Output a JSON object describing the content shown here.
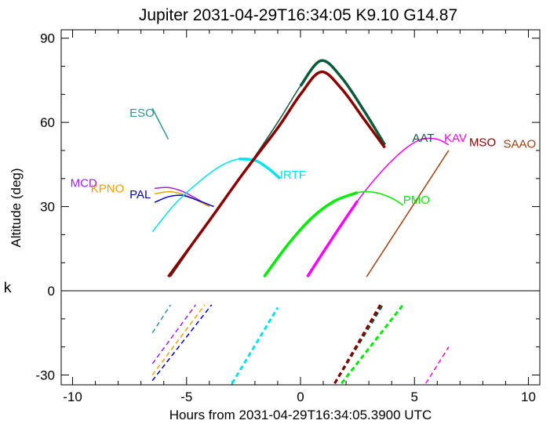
{
  "chart_data": {
    "type": "line",
    "title": "Jupiter 2031-04-29T16:34:05  K9.10  G14.87",
    "xlabel": "Hours from 2031-04-29T16:34:05.3900 UTC",
    "ylabel": "Altitude (deg)",
    "xlim": [
      -10.5,
      10.5
    ],
    "ylim": [
      -33.5,
      93
    ],
    "horizon_line": 0,
    "xticks": [
      -10,
      -5,
      0,
      5,
      10
    ],
    "xtick_labels": [
      "-10",
      "-5",
      "0",
      "5",
      "10"
    ],
    "yticks": [
      -30,
      0,
      30,
      60,
      90
    ],
    "ytick_labels": [
      "-30",
      "0",
      "30",
      "60",
      "90"
    ],
    "stray_text": "k",
    "series": [
      {
        "name": "ESO",
        "color": "#2a9a8e",
        "width": 1.5,
        "x": [
          -6.5,
          -5.8
        ],
        "y": [
          65,
          54
        ],
        "below": {
          "x": [
            -6.5,
            -5.7
          ],
          "y": [
            -15,
            -5
          ]
        }
      },
      {
        "name": "MCD",
        "color": "#a020f0",
        "width": 1.5,
        "x": [
          -6.4,
          -5.8,
          -5.2,
          -4.6,
          -4.0
        ],
        "y": [
          36.5,
          36.8,
          35.5,
          33.0,
          30.0
        ],
        "below": {
          "x": [
            -6.5,
            -4.6
          ],
          "y": [
            -26,
            -5
          ]
        }
      },
      {
        "name": "KPNO",
        "color": "#f0a000",
        "width": 1.5,
        "x": [
          -6.4,
          -5.8,
          -5.2,
          -4.6,
          -4.0
        ],
        "y": [
          34.5,
          35.3,
          34.5,
          32.5,
          30.0
        ],
        "below": {
          "x": [
            -6.5,
            -4.2
          ],
          "y": [
            -30,
            -5
          ]
        }
      },
      {
        "name": "PAL",
        "color": "#0000cd",
        "width": 1.5,
        "x": [
          -6.4,
          -5.8,
          -5.2,
          -4.6,
          -3.8
        ],
        "y": [
          31.5,
          33.5,
          34.0,
          32.5,
          30.0
        ],
        "below": {
          "x": [
            -6.5,
            -3.9
          ],
          "y": [
            -32,
            -5
          ]
        }
      },
      {
        "name": "IRTF",
        "color": "#00e5ee",
        "width": 1.5,
        "x": [
          -6.5,
          -5.5,
          -4.5,
          -3.5,
          -2.7,
          -2.0,
          -1.4,
          -0.9
        ],
        "y": [
          21,
          31,
          38.5,
          44.5,
          47,
          46.5,
          43.5,
          40
        ],
        "bold_from": -2.7,
        "below": {
          "x": [
            -3.0,
            -1.0
          ],
          "y": [
            -33,
            -6
          ]
        }
      },
      {
        "name": "AAT",
        "color": "#0a5a3a",
        "width": 1.5,
        "x": [
          -5.7,
          -4.0,
          -2.5,
          -1.0,
          0.0,
          0.9,
          1.8,
          2.8,
          3.7
        ],
        "y": [
          5,
          25,
          42,
          60,
          73,
          82,
          76,
          64,
          52
        ],
        "bold_from": 0,
        "below": {
          "x": [
            1.5,
            3.6
          ],
          "y": [
            -33,
            -5
          ]
        }
      },
      {
        "name": "KAV",
        "color": "#ff00ff",
        "width": 1.5,
        "x": [
          0.3,
          1.5,
          2.5,
          3.5,
          4.5,
          5.3,
          6.0,
          6.5
        ],
        "y": [
          5,
          20,
          32,
          42,
          50,
          54,
          54,
          52
        ],
        "bold_until": 2.5,
        "below": {
          "x": [
            5.5,
            6.5
          ],
          "y": [
            -33,
            -20
          ]
        }
      },
      {
        "name": "MSO",
        "color": "#8b0000",
        "width": 1.5,
        "x": [
          -5.8,
          -4.0,
          -2.5,
          -1.0,
          0.0,
          0.9,
          1.8,
          2.8,
          3.7
        ],
        "y": [
          5,
          25,
          42,
          58,
          70,
          78,
          72,
          61,
          51
        ],
        "bold_from": -5.8,
        "below": {
          "x": [
            1.5,
            3.5
          ],
          "y": [
            -33,
            -5
          ]
        }
      },
      {
        "name": "SAAO",
        "color": "#a0400a",
        "width": 1.5,
        "x": [
          2.9,
          6.5
        ],
        "y": [
          5,
          50
        ],
        "below": null
      },
      {
        "name": "PMO",
        "color": "#00ee00",
        "width": 1.5,
        "x": [
          -1.6,
          -0.5,
          0.5,
          1.5,
          2.5,
          3.3,
          4.0,
          4.5
        ],
        "y": [
          5,
          17,
          26,
          32,
          35,
          35,
          33,
          30.5
        ],
        "bold_until": 2.5,
        "below": {
          "x": [
            1.8,
            4.5
          ],
          "y": [
            -33,
            -5
          ]
        }
      }
    ],
    "labels": [
      {
        "text": "ESO",
        "color": "#2a9a8e",
        "x": -7.5,
        "y": 62
      },
      {
        "text": "MCD",
        "color": "#a020f0",
        "x": -10.1,
        "y": 37
      },
      {
        "text": "KPNO",
        "color": "#f0a000",
        "x": -9.2,
        "y": 35
      },
      {
        "text": "PAL",
        "color": "#0000cd",
        "x": -7.5,
        "y": 33
      },
      {
        "text": "IRTF",
        "color": "#00e5ee",
        "x": -0.9,
        "y": 40
      },
      {
        "text": "AAT",
        "color": "#0a5a3a",
        "x": 4.9,
        "y": 53
      },
      {
        "text": "KAV",
        "color": "#ff00ff",
        "x": 6.3,
        "y": 53
      },
      {
        "text": "MSO",
        "color": "#8b0000",
        "x": 7.4,
        "y": 51.5
      },
      {
        "text": "SAAO",
        "color": "#a0400a",
        "x": 8.9,
        "y": 51
      },
      {
        "text": "PMO",
        "color": "#00ee00",
        "x": 4.5,
        "y": 31
      }
    ]
  }
}
